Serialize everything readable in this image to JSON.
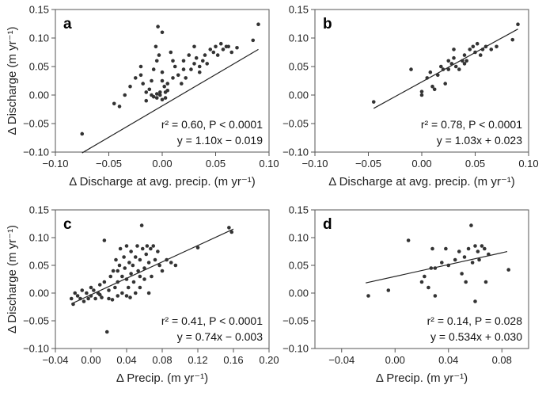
{
  "chart_data": [
    {
      "panel": "a",
      "type": "scatter",
      "xlabel": "Δ Discharge at avg. precip. (m yr⁻¹)",
      "ylabel": "Δ Discharge (m yr⁻¹)",
      "xlim": [
        -0.1,
        0.1
      ],
      "ylim": [
        -0.1,
        0.15
      ],
      "xticks": [
        "−0.10",
        "−0.05",
        "0.00",
        "0.05",
        "0.10"
      ],
      "yticks": [
        "−0.10",
        "−0.05",
        "0.00",
        "0.05",
        "0.10",
        "0.15"
      ],
      "stat_line1": "r² = 0.60, P < 0.0001",
      "stat_line2": "y = 1.10x − 0.019",
      "fit": {
        "slope": 1.1,
        "intercept": -0.019,
        "x_range": [
          -0.075,
          0.09
        ]
      },
      "points": [
        [
          -0.075,
          -0.068
        ],
        [
          -0.045,
          -0.015
        ],
        [
          -0.04,
          -0.02
        ],
        [
          -0.035,
          0.0
        ],
        [
          -0.03,
          0.015
        ],
        [
          -0.025,
          0.03
        ],
        [
          -0.02,
          0.035
        ],
        [
          -0.02,
          0.05
        ],
        [
          -0.018,
          0.02
        ],
        [
          -0.015,
          -0.01
        ],
        [
          -0.012,
          0.01
        ],
        [
          -0.01,
          0.0
        ],
        [
          -0.01,
          0.025
        ],
        [
          -0.008,
          0.045
        ],
        [
          -0.006,
          0.085
        ],
        [
          -0.005,
          0.06
        ],
        [
          -0.005,
          -0.005
        ],
        [
          -0.004,
          0.12
        ],
        [
          -0.003,
          0.07
        ],
        [
          -0.002,
          0.005
        ],
        [
          0.0,
          0.11
        ],
        [
          0.0,
          0.04
        ],
        [
          0.0,
          0.025
        ],
        [
          0.002,
          0.015
        ],
        [
          0.003,
          -0.005
        ],
        [
          0.003,
          0.005
        ],
        [
          0.005,
          0.02
        ],
        [
          0.008,
          0.075
        ],
        [
          0.01,
          0.06
        ],
        [
          0.01,
          0.03
        ],
        [
          0.012,
          0.05
        ],
        [
          0.015,
          0.035
        ],
        [
          0.018,
          0.02
        ],
        [
          0.02,
          0.06
        ],
        [
          0.02,
          0.045
        ],
        [
          0.022,
          0.03
        ],
        [
          0.025,
          0.07
        ],
        [
          0.027,
          0.045
        ],
        [
          0.03,
          0.055
        ],
        [
          0.03,
          0.085
        ],
        [
          0.032,
          0.065
        ],
        [
          0.035,
          0.05
        ],
        [
          0.035,
          0.04
        ],
        [
          0.038,
          0.06
        ],
        [
          0.04,
          0.07
        ],
        [
          0.042,
          0.055
        ],
        [
          0.045,
          0.08
        ],
        [
          0.048,
          0.075
        ],
        [
          0.05,
          0.085
        ],
        [
          0.052,
          0.07
        ],
        [
          0.055,
          0.09
        ],
        [
          0.057,
          0.08
        ],
        [
          0.06,
          0.085
        ],
        [
          0.062,
          0.085
        ],
        [
          0.065,
          0.075
        ],
        [
          0.07,
          0.083
        ],
        [
          0.085,
          0.096
        ],
        [
          0.09,
          0.124
        ],
        [
          -0.005,
          0.002
        ],
        [
          -0.008,
          -0.003
        ],
        [
          0.0,
          -0.008
        ],
        [
          0.005,
          0.008
        ],
        [
          -0.015,
          0.005
        ],
        [
          -0.002,
          0.0
        ]
      ]
    },
    {
      "panel": "b",
      "type": "scatter",
      "xlabel": "Δ Discharge at avg. precip. (m yr⁻¹)",
      "ylabel": "",
      "xlim": [
        -0.1,
        0.1
      ],
      "ylim": [
        -0.1,
        0.15
      ],
      "xticks": [
        "−0.10",
        "−0.05",
        "0.00",
        "0.05",
        "0.10"
      ],
      "yticks": [
        "−0.10",
        "−0.05",
        "0.00",
        "0.05",
        "0.10",
        "0.15"
      ],
      "stat_line1": "r² = 0.78, P < 0.0001",
      "stat_line2": "y = 1.03x + 0.023",
      "fit": {
        "slope": 1.03,
        "intercept": 0.023,
        "x_range": [
          -0.045,
          0.09
        ]
      },
      "points": [
        [
          -0.045,
          -0.012
        ],
        [
          -0.01,
          0.045
        ],
        [
          0.0,
          0.0
        ],
        [
          0.0,
          0.006
        ],
        [
          0.005,
          0.03
        ],
        [
          0.008,
          0.04
        ],
        [
          0.01,
          0.015
        ],
        [
          0.012,
          0.01
        ],
        [
          0.015,
          0.035
        ],
        [
          0.018,
          0.05
        ],
        [
          0.02,
          0.045
        ],
        [
          0.022,
          0.02
        ],
        [
          0.025,
          0.06
        ],
        [
          0.028,
          0.055
        ],
        [
          0.03,
          0.08
        ],
        [
          0.03,
          0.065
        ],
        [
          0.032,
          0.05
        ],
        [
          0.035,
          0.045
        ],
        [
          0.038,
          0.06
        ],
        [
          0.04,
          0.07
        ],
        [
          0.042,
          0.06
        ],
        [
          0.045,
          0.08
        ],
        [
          0.048,
          0.085
        ],
        [
          0.05,
          0.075
        ],
        [
          0.052,
          0.09
        ],
        [
          0.055,
          0.07
        ],
        [
          0.057,
          0.08
        ],
        [
          0.06,
          0.085
        ],
        [
          0.065,
          0.08
        ],
        [
          0.07,
          0.085
        ],
        [
          0.085,
          0.097
        ],
        [
          0.09,
          0.124
        ],
        [
          0.04,
          0.055
        ],
        [
          0.025,
          0.045
        ]
      ]
    },
    {
      "panel": "c",
      "type": "scatter",
      "xlabel": "Δ Precip. (m yr⁻¹)",
      "ylabel": "Δ Discharge (m yr⁻¹)",
      "xlim": [
        -0.04,
        0.2
      ],
      "ylim": [
        -0.1,
        0.15
      ],
      "xticks": [
        "−0.04",
        "0.00",
        "0.04",
        "0.08",
        "0.12",
        "0.16",
        "0.20"
      ],
      "yticks": [
        "−0.10",
        "−0.05",
        "0.00",
        "0.05",
        "0.10",
        "0.15"
      ],
      "stat_line1": "r² = 0.41, P < 0.0001",
      "stat_line2": "y = 0.74x − 0.003",
      "fit": {
        "slope": 0.74,
        "intercept": -0.003,
        "x_range": [
          -0.022,
          0.16
        ]
      },
      "points": [
        [
          -0.022,
          -0.01
        ],
        [
          -0.02,
          -0.02
        ],
        [
          -0.018,
          0.0
        ],
        [
          -0.015,
          -0.005
        ],
        [
          -0.012,
          -0.01
        ],
        [
          -0.01,
          0.005
        ],
        [
          -0.008,
          -0.015
        ],
        [
          -0.005,
          0.0
        ],
        [
          -0.003,
          -0.01
        ],
        [
          0.0,
          0.01
        ],
        [
          0.0,
          -0.005
        ],
        [
          0.003,
          0.005
        ],
        [
          0.005,
          -0.01
        ],
        [
          0.008,
          0.0
        ],
        [
          0.01,
          0.015
        ],
        [
          0.012,
          -0.008
        ],
        [
          0.015,
          0.095
        ],
        [
          0.015,
          0.02
        ],
        [
          0.018,
          -0.07
        ],
        [
          0.02,
          0.005
        ],
        [
          0.022,
          0.03
        ],
        [
          0.024,
          -0.012
        ],
        [
          0.025,
          0.04
        ],
        [
          0.027,
          0.01
        ],
        [
          0.028,
          0.06
        ],
        [
          0.03,
          0.02
        ],
        [
          0.03,
          -0.005
        ],
        [
          0.032,
          0.05
        ],
        [
          0.033,
          0.08
        ],
        [
          0.035,
          0.03
        ],
        [
          0.035,
          0.0
        ],
        [
          0.037,
          0.065
        ],
        [
          0.038,
          0.045
        ],
        [
          0.04,
          0.025
        ],
        [
          0.04,
          0.085
        ],
        [
          0.042,
          0.01
        ],
        [
          0.043,
          0.055
        ],
        [
          0.044,
          -0.008
        ],
        [
          0.045,
          0.075
        ],
        [
          0.045,
          0.035
        ],
        [
          0.047,
          0.05
        ],
        [
          0.048,
          0.02
        ],
        [
          0.05,
          0.065
        ],
        [
          0.05,
          0.0
        ],
        [
          0.052,
          0.085
        ],
        [
          0.053,
          0.04
        ],
        [
          0.055,
          0.06
        ],
        [
          0.055,
          0.01
        ],
        [
          0.057,
          0.122
        ],
        [
          0.058,
          0.08
        ],
        [
          0.06,
          0.045
        ],
        [
          0.06,
          0.025
        ],
        [
          0.062,
          0.07
        ],
        [
          0.063,
          0.085
        ],
        [
          0.065,
          0.055
        ],
        [
          0.067,
          0.08
        ],
        [
          0.068,
          0.03
        ],
        [
          0.07,
          0.085
        ],
        [
          0.072,
          0.06
        ],
        [
          0.075,
          0.075
        ],
        [
          0.077,
          0.05
        ],
        [
          0.08,
          0.04
        ],
        [
          0.085,
          0.06
        ],
        [
          0.09,
          0.055
        ],
        [
          0.095,
          0.05
        ],
        [
          0.12,
          0.082
        ],
        [
          0.155,
          0.118
        ],
        [
          0.158,
          0.11
        ],
        [
          0.04,
          -0.005
        ],
        [
          0.03,
          0.04
        ],
        [
          0.02,
          -0.01
        ],
        [
          0.01,
          -0.003
        ],
        [
          0.065,
          0.0
        ],
        [
          0.055,
          0.03
        ]
      ]
    },
    {
      "panel": "d",
      "type": "scatter",
      "xlabel": "Δ Precip. (m yr⁻¹)",
      "ylabel": "",
      "xlim": [
        -0.06,
        0.1
      ],
      "ylim": [
        -0.1,
        0.15
      ],
      "xticks": [
        "−0.04",
        "0.00",
        "0.04",
        "0.08"
      ],
      "xtick_values": [
        -0.04,
        0.0,
        0.04,
        0.08
      ],
      "yticks": [
        "−0.10",
        "−0.05",
        "0.00",
        "0.05",
        "0.10",
        "0.15"
      ],
      "stat_line1": "r² = 0.14, P = 0.028",
      "stat_line2": "y = 0.534x + 0.030",
      "fit": {
        "slope": 0.534,
        "intercept": 0.03,
        "x_range": [
          -0.022,
          0.084
        ]
      },
      "points": [
        [
          -0.02,
          -0.005
        ],
        [
          -0.005,
          0.005
        ],
        [
          0.01,
          0.095
        ],
        [
          0.02,
          0.02
        ],
        [
          0.022,
          0.03
        ],
        [
          0.025,
          0.01
        ],
        [
          0.027,
          0.045
        ],
        [
          0.028,
          0.08
        ],
        [
          0.03,
          0.045
        ],
        [
          0.03,
          -0.005
        ],
        [
          0.035,
          0.055
        ],
        [
          0.038,
          0.08
        ],
        [
          0.04,
          0.05
        ],
        [
          0.045,
          0.06
        ],
        [
          0.048,
          0.075
        ],
        [
          0.05,
          0.035
        ],
        [
          0.052,
          0.065
        ],
        [
          0.053,
          0.02
        ],
        [
          0.055,
          0.08
        ],
        [
          0.057,
          0.122
        ],
        [
          0.058,
          0.055
        ],
        [
          0.06,
          0.085
        ],
        [
          0.06,
          -0.015
        ],
        [
          0.062,
          0.075
        ],
        [
          0.063,
          0.06
        ],
        [
          0.065,
          0.085
        ],
        [
          0.067,
          0.08
        ],
        [
          0.068,
          0.02
        ],
        [
          0.07,
          0.07
        ],
        [
          0.085,
          0.042
        ]
      ]
    }
  ]
}
